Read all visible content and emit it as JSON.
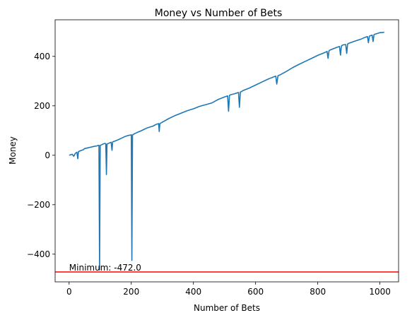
{
  "chart_data": {
    "type": "line",
    "title": "Money vs Number of Bets",
    "xlabel": "Number of Bets",
    "ylabel": "Money",
    "xlim": [
      -45,
      1060
    ],
    "ylim": [
      -512,
      548
    ],
    "xticks": [
      0,
      200,
      400,
      600,
      800,
      1000
    ],
    "yticks": [
      -400,
      -200,
      0,
      200,
      400
    ],
    "ytick_labels": [
      "−400",
      "−200",
      "0",
      "200",
      "400"
    ],
    "xtick_labels": [
      "0",
      "200",
      "400",
      "600",
      "800",
      "1000"
    ],
    "grid": false,
    "series": [
      {
        "color": "#1f77b4",
        "x": [
          0,
          10,
          15,
          20,
          25,
          28,
          30,
          40,
          45,
          50,
          60,
          70,
          80,
          90,
          94,
          96,
          98,
          100,
          105,
          110,
          115,
          118,
          120,
          122,
          125,
          130,
          135,
          138,
          140,
          150,
          160,
          170,
          180,
          190,
          198,
          200,
          202,
          204,
          206,
          210,
          220,
          230,
          240,
          250,
          260,
          270,
          280,
          288,
          290,
          292,
          300,
          320,
          340,
          360,
          380,
          400,
          420,
          440,
          460,
          480,
          500,
          510,
          513,
          516,
          520,
          530,
          540,
          545,
          548,
          551,
          555,
          560,
          580,
          600,
          620,
          640,
          660,
          665,
          668,
          672,
          680,
          700,
          720,
          740,
          760,
          780,
          800,
          820,
          830,
          833,
          836,
          840,
          860,
          870,
          873,
          876,
          880,
          890,
          893,
          896,
          900,
          920,
          940,
          950,
          960,
          963,
          966,
          970,
          975,
          978,
          981,
          985,
          990,
          1000,
          1010,
          1014
        ],
        "y": [
          0,
          4,
          -4,
          8,
          12,
          -14,
          15,
          20,
          22,
          27,
          30,
          33,
          36,
          38,
          40,
          40,
          -462,
          40,
          43,
          46,
          48,
          46,
          -78,
          45,
          47,
          50,
          53,
          20,
          54,
          59,
          64,
          70,
          76,
          80,
          82,
          83,
          -425,
          82,
          84,
          87,
          93,
          98,
          104,
          110,
          114,
          118,
          125,
          128,
          96,
          128,
          134,
          148,
          160,
          170,
          180,
          188,
          198,
          205,
          212,
          226,
          236,
          240,
          178,
          242,
          245,
          248,
          252,
          254,
          194,
          256,
          258,
          262,
          272,
          284,
          296,
          308,
          318,
          320,
          288,
          322,
          326,
          340,
          355,
          368,
          380,
          392,
          404,
          414,
          420,
          392,
          422,
          426,
          436,
          440,
          405,
          442,
          446,
          448,
          412,
          450,
          453,
          462,
          470,
          476,
          480,
          455,
          482,
          484,
          486,
          460,
          488,
          490,
          492,
          496,
          497,
          498
        ]
      }
    ],
    "hline": {
      "y": -472,
      "color": "#ff0000"
    },
    "annotation": {
      "text": "Minimum: -472.0",
      "x": 0,
      "y": -472
    }
  }
}
